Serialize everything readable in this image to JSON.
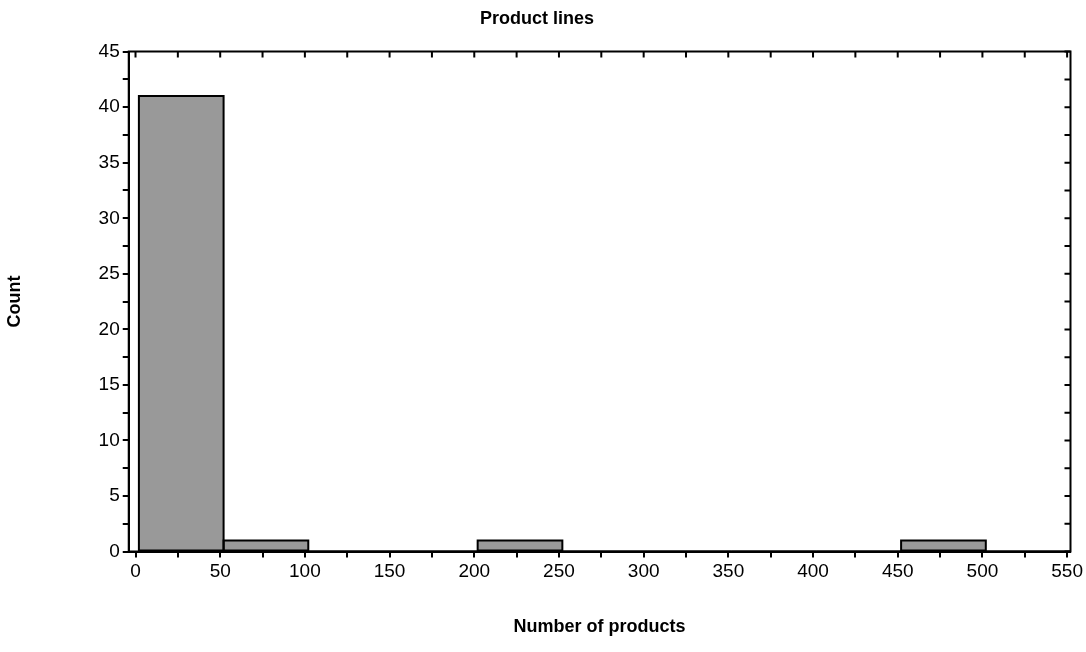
{
  "chart_data": {
    "type": "histogram",
    "title": "Product lines",
    "xlabel": "Number of products",
    "ylabel": "Count",
    "bins": [
      2,
      52,
      102,
      152,
      202,
      252,
      302,
      352,
      402,
      452,
      502,
      552
    ],
    "values": [
      41,
      1,
      0,
      0,
      1,
      0,
      0,
      0,
      0,
      1,
      0
    ],
    "color": "#999999",
    "xlim": [
      -4,
      552
    ],
    "xticks": [
      0,
      {
        "value": 25,
        "label": null
      },
      50,
      {
        "value": 75,
        "label": null
      },
      100,
      {
        "value": 125,
        "label": null
      },
      150,
      {
        "value": 175,
        "label": null
      },
      200,
      {
        "value": 225,
        "label": null
      },
      250,
      {
        "value": 275,
        "label": null
      },
      300,
      {
        "value": 325,
        "label": null
      },
      350,
      {
        "value": 375,
        "label": null
      },
      400,
      {
        "value": 425,
        "label": null
      },
      450,
      {
        "value": 475,
        "label": null
      },
      500,
      {
        "value": 525,
        "label": null
      },
      550
    ],
    "ylim": [
      0,
      45
    ],
    "yticks": [
      0,
      {
        "value": 2.5,
        "label": null
      },
      5,
      {
        "value": 7.5,
        "label": null
      },
      10,
      {
        "value": 12.5,
        "label": null
      },
      15,
      {
        "value": 17.5,
        "label": null
      },
      20,
      {
        "value": 22.5,
        "label": null
      },
      25,
      {
        "value": 27.5,
        "label": null
      },
      30,
      {
        "value": 32.5,
        "label": null
      },
      35,
      {
        "value": 37.5,
        "label": null
      },
      40,
      {
        "value": 42.5,
        "label": null
      },
      45
    ],
    "grid": false,
    "legend": false
  }
}
